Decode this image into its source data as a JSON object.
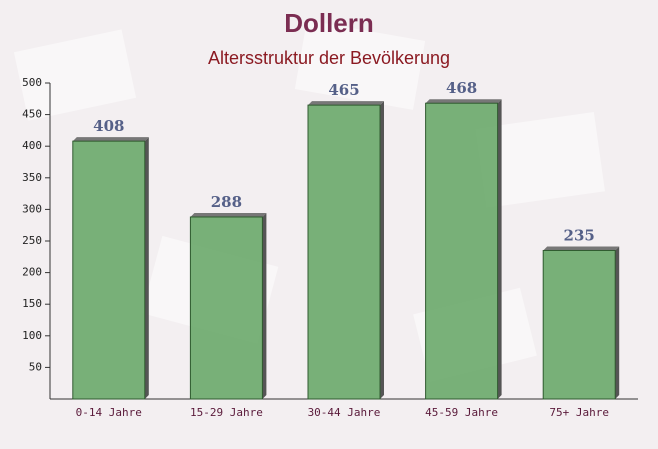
{
  "chart_data": {
    "type": "bar",
    "title": "Dollern",
    "subtitle": "Altersstruktur der Bevölkerung",
    "categories": [
      "0-14 Jahre",
      "15-29 Jahre",
      "30-44 Jahre",
      "45-59 Jahre",
      "75+ Jahre"
    ],
    "values": [
      408,
      288,
      465,
      468,
      235
    ],
    "color": "#6aa86a",
    "ylim": [
      0,
      500
    ],
    "yticks": [
      50,
      100,
      150,
      200,
      250,
      300,
      350,
      400,
      450,
      500
    ],
    "grid": false
  }
}
